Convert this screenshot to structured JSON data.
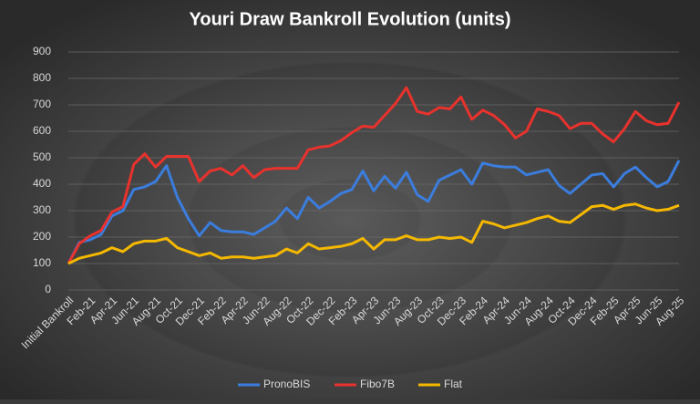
{
  "chart_data": {
    "type": "line",
    "title": "Youri Draw Bankroll Evolution (units)",
    "categories": [
      "Initial Bankroll",
      null,
      "Feb-21",
      null,
      "Apr-21",
      null,
      "Jun-21",
      null,
      "Aug-21",
      null,
      "Oct-21",
      null,
      "Dec-21",
      null,
      "Feb-22",
      null,
      "Apr-22",
      null,
      "Jun-22",
      null,
      "Aug-22",
      null,
      "Oct-22",
      null,
      "Dec-22",
      null,
      "Feb-23",
      null,
      "Apr-23",
      null,
      "Jun-23",
      null,
      "Aug-23",
      null,
      "Oct-23",
      null,
      "Dec-23",
      null,
      "Feb-24",
      null,
      "Apr-24",
      null,
      "Jun-24",
      null,
      "Aug-24",
      null,
      "Oct-24",
      null,
      "Dec-24",
      null,
      "Feb-25",
      null,
      "Apr-25",
      null,
      "Jun-25",
      null,
      "Aug-25"
    ],
    "series": [
      {
        "name": "PronoBIS",
        "color": "#3b7ddd",
        "values": [
          100,
          180,
          190,
          210,
          280,
          300,
          380,
          390,
          410,
          470,
          350,
          270,
          205,
          255,
          225,
          220,
          220,
          210,
          235,
          260,
          310,
          270,
          350,
          310,
          335,
          365,
          380,
          450,
          375,
          430,
          385,
          445,
          360,
          335,
          415,
          435,
          455,
          400,
          480,
          470,
          465,
          465,
          435,
          445,
          455,
          395,
          365,
          400,
          435,
          440,
          390,
          440,
          465,
          425,
          390,
          410,
          490
        ]
      },
      {
        "name": "Fibo7B",
        "color": "#e8322d",
        "values": [
          100,
          175,
          205,
          225,
          295,
          315,
          475,
          515,
          465,
          505,
          505,
          505,
          410,
          450,
          460,
          435,
          470,
          425,
          455,
          460,
          460,
          460,
          530,
          540,
          545,
          565,
          595,
          620,
          615,
          660,
          705,
          765,
          675,
          665,
          690,
          685,
          730,
          645,
          680,
          660,
          625,
          575,
          600,
          685,
          675,
          660,
          610,
          630,
          630,
          590,
          560,
          610,
          675,
          640,
          625,
          630,
          710
        ]
      },
      {
        "name": "Flat",
        "color": "#f5b800",
        "values": [
          100,
          120,
          130,
          140,
          160,
          145,
          175,
          185,
          185,
          195,
          160,
          145,
          130,
          140,
          120,
          125,
          125,
          120,
          125,
          130,
          155,
          140,
          175,
          155,
          160,
          165,
          175,
          195,
          155,
          190,
          190,
          205,
          190,
          190,
          200,
          195,
          200,
          180,
          260,
          250,
          235,
          245,
          255,
          270,
          280,
          260,
          255,
          285,
          315,
          320,
          305,
          320,
          325,
          310,
          300,
          305,
          320
        ]
      }
    ],
    "ylim": [
      0,
      900
    ],
    "yticks": [
      0,
      100,
      200,
      300,
      400,
      500,
      600,
      700,
      800,
      900
    ],
    "grid": true,
    "legend": "bottom"
  }
}
